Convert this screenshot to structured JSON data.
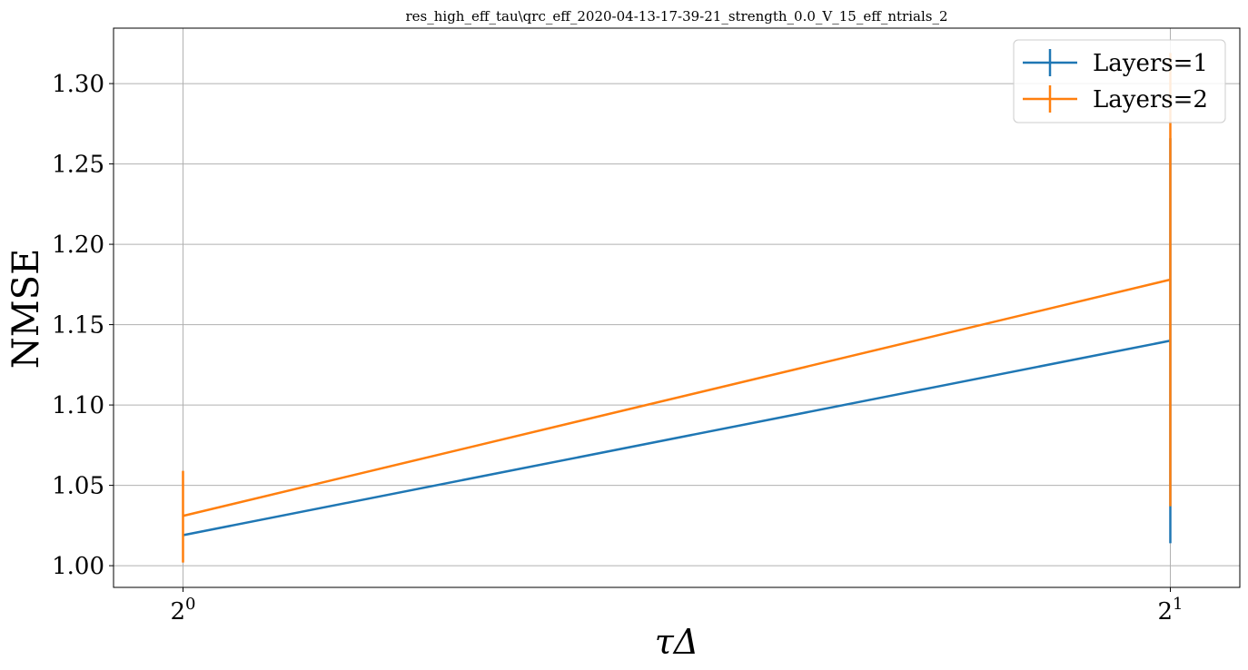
{
  "chart_data": {
    "type": "line",
    "title": "res_high_eff_tau\\qrc_eff_2020-04-13-17-39-21_strength_0.0_V_15_eff_ntrials_2",
    "xlabel": "τΔ",
    "ylabel": "NMSE",
    "xscale": "log2",
    "x": [
      1,
      2
    ],
    "xticks": [
      {
        "value": 1,
        "base": "2",
        "exp": "0"
      },
      {
        "value": 2,
        "base": "2",
        "exp": "1"
      }
    ],
    "yticks": [
      "1.00",
      "1.05",
      "1.10",
      "1.15",
      "1.20",
      "1.25",
      "1.30"
    ],
    "ylim": [
      0.9865,
      1.3345
    ],
    "xlim": [
      0.9524,
      2.1
    ],
    "grid": true,
    "legend_position": "top-right",
    "series": [
      {
        "name": "Layers=1",
        "color": "#1f77b4",
        "values": [
          1.019,
          1.14
        ],
        "err_low": [
          1.019,
          1.014
        ],
        "err_high": [
          1.019,
          1.266
        ]
      },
      {
        "name": "Layers=2",
        "color": "#ff7f0e",
        "values": [
          1.031,
          1.178
        ],
        "err_low": [
          1.002,
          1.037
        ],
        "err_high": [
          1.059,
          1.319
        ]
      }
    ]
  }
}
